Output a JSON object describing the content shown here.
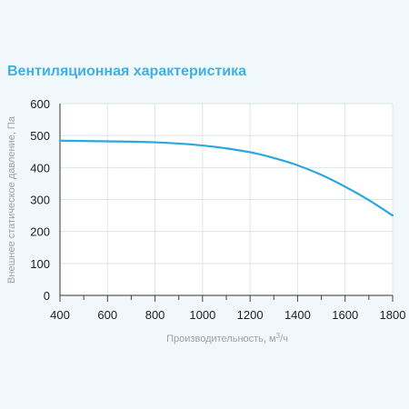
{
  "title": "Вентиляционная характеристика",
  "chart_data": {
    "type": "line",
    "title": "Вентиляционная характеристика",
    "xlabel": "Производительность, м³/ч",
    "xlabel_parts": {
      "base": "Производительность, м",
      "sup": "3",
      "suffix": "/ч"
    },
    "ylabel": "Внешнее статическое давление, Па",
    "xlim": [
      400,
      1800
    ],
    "ylim": [
      0,
      600
    ],
    "x_ticks": [
      400,
      600,
      800,
      1000,
      1200,
      1400,
      1600,
      1800
    ],
    "y_ticks": [
      0,
      100,
      200,
      300,
      400,
      500,
      600
    ],
    "grid": true,
    "legend": "none",
    "series": [
      {
        "color": "#29a8e0",
        "x": [
          400,
          500,
          600,
          700,
          800,
          900,
          1000,
          1100,
          1200,
          1300,
          1400,
          1500,
          1600,
          1700,
          1800
        ],
        "y": [
          484,
          483,
          482,
          481,
          479,
          475,
          469,
          460,
          448,
          430,
          407,
          377,
          340,
          298,
          250
        ]
      }
    ]
  }
}
